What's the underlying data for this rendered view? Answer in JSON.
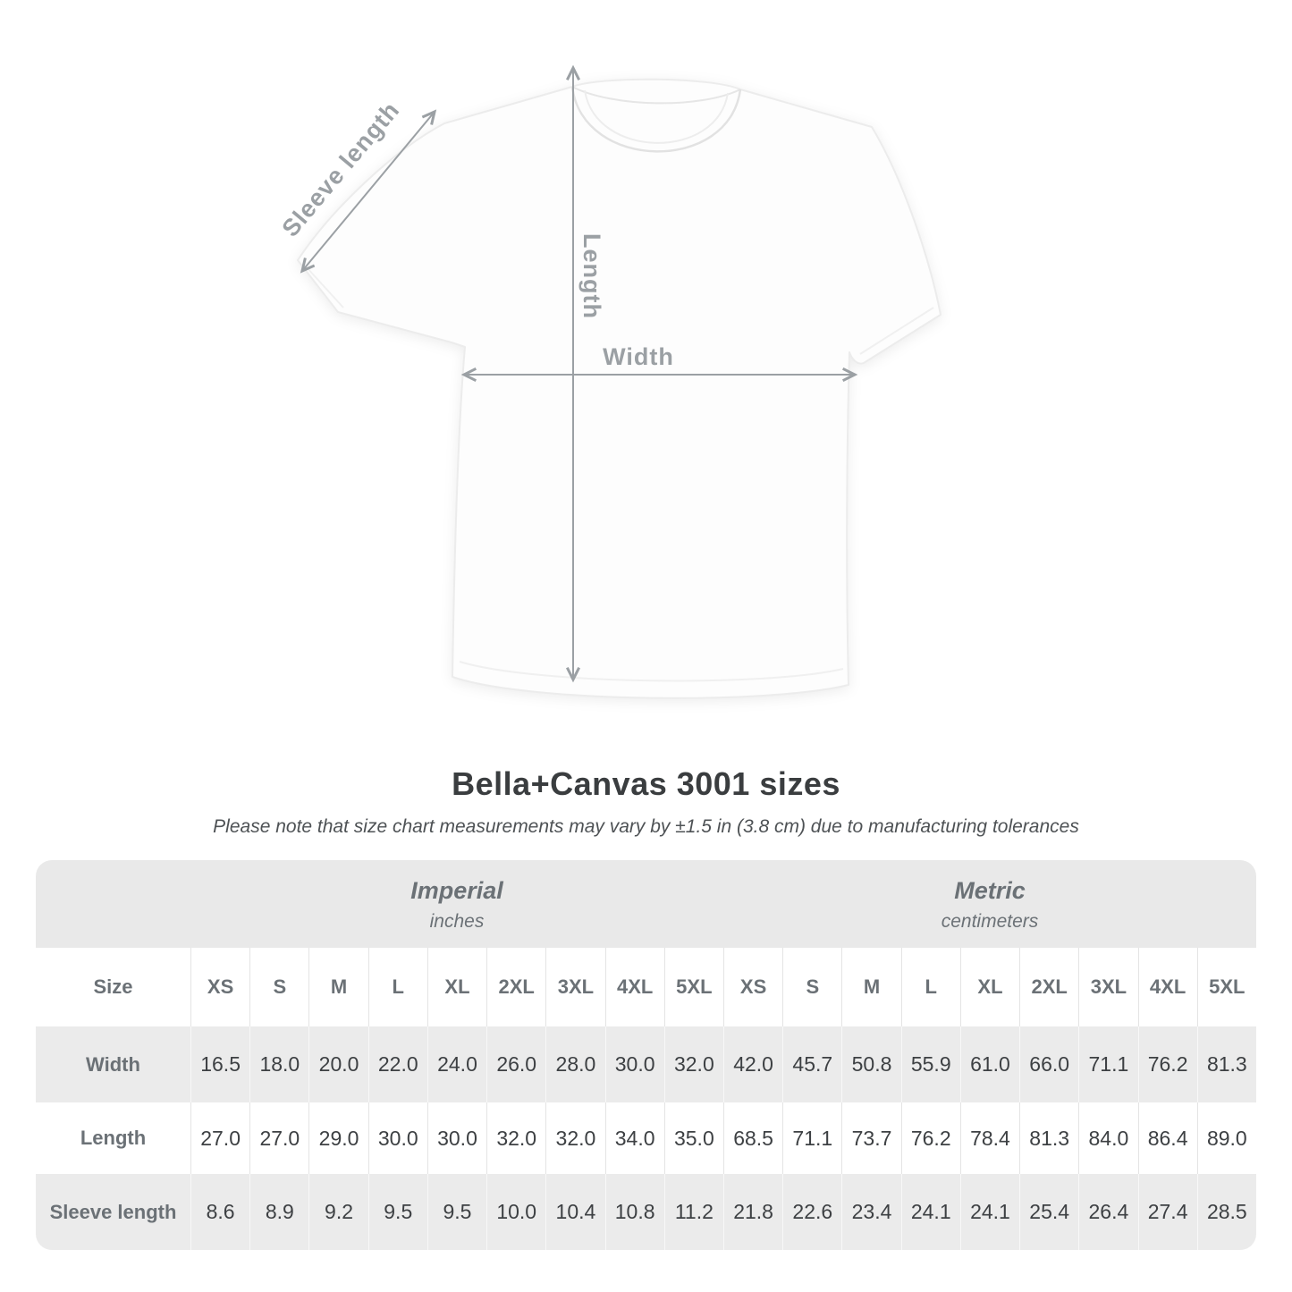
{
  "diagram": {
    "sleeve_label": "Sleeve length",
    "length_label": "Length",
    "width_label": "Width"
  },
  "header": {
    "title": "Bella+Canvas 3001 sizes",
    "note": "Please note that size chart measurements may vary by ±1.5 in (3.8 cm) due to manufacturing tolerances"
  },
  "table": {
    "size_label": "Size",
    "unit_groups": [
      {
        "name": "Imperial",
        "unit": "inches"
      },
      {
        "name": "Metric",
        "unit": "centimeters"
      }
    ],
    "sizes": [
      "XS",
      "S",
      "M",
      "L",
      "XL",
      "2XL",
      "3XL",
      "4XL",
      "5XL"
    ],
    "rows": [
      {
        "label": "Width",
        "imperial": [
          "16.5",
          "18.0",
          "20.0",
          "22.0",
          "24.0",
          "26.0",
          "28.0",
          "30.0",
          "32.0"
        ],
        "metric": [
          "42.0",
          "45.7",
          "50.8",
          "55.9",
          "61.0",
          "66.0",
          "71.1",
          "76.2",
          "81.3"
        ]
      },
      {
        "label": "Length",
        "imperial": [
          "27.0",
          "27.0",
          "29.0",
          "30.0",
          "30.0",
          "32.0",
          "32.0",
          "34.0",
          "35.0"
        ],
        "metric": [
          "68.5",
          "71.1",
          "73.7",
          "76.2",
          "78.4",
          "81.3",
          "84.0",
          "86.4",
          "89.0"
        ]
      },
      {
        "label": "Sleeve length",
        "imperial": [
          "8.6",
          "8.9",
          "9.2",
          "9.5",
          "9.5",
          "10.0",
          "10.4",
          "10.8",
          "11.2"
        ],
        "metric": [
          "21.8",
          "22.6",
          "23.4",
          "24.1",
          "24.1",
          "25.4",
          "26.4",
          "27.4",
          "28.5"
        ]
      }
    ]
  },
  "colors": {
    "band_gray": "#e9e9e9",
    "row_alt_gray": "#ebebeb",
    "label_text": "#6b7176",
    "value_text": "#3d4043",
    "measure_gray": "#9ba0a4",
    "title_text": "#3a3d3f"
  },
  "chart_data": {
    "type": "table",
    "title": "Bella+Canvas 3001 sizes",
    "note": "Please note that size chart measurements may vary by ±1.5 in (3.8 cm) due to manufacturing tolerances",
    "column_groups": [
      "Imperial (inches)",
      "Metric (centimeters)"
    ],
    "columns": [
      "XS",
      "S",
      "M",
      "L",
      "XL",
      "2XL",
      "3XL",
      "4XL",
      "5XL"
    ],
    "rows": [
      {
        "label": "Width",
        "imperial": [
          16.5,
          18.0,
          20.0,
          22.0,
          24.0,
          26.0,
          28.0,
          30.0,
          32.0
        ],
        "metric": [
          42.0,
          45.7,
          50.8,
          55.9,
          61.0,
          66.0,
          71.1,
          76.2,
          81.3
        ]
      },
      {
        "label": "Length",
        "imperial": [
          27.0,
          27.0,
          29.0,
          30.0,
          30.0,
          32.0,
          32.0,
          34.0,
          35.0
        ],
        "metric": [
          68.5,
          71.1,
          73.7,
          76.2,
          78.4,
          81.3,
          84.0,
          86.4,
          89.0
        ]
      },
      {
        "label": "Sleeve length",
        "imperial": [
          8.6,
          8.9,
          9.2,
          9.5,
          9.5,
          10.0,
          10.4,
          10.8,
          11.2
        ],
        "metric": [
          21.8,
          22.6,
          23.4,
          24.1,
          24.1,
          25.4,
          26.4,
          27.4,
          28.5
        ]
      }
    ]
  }
}
